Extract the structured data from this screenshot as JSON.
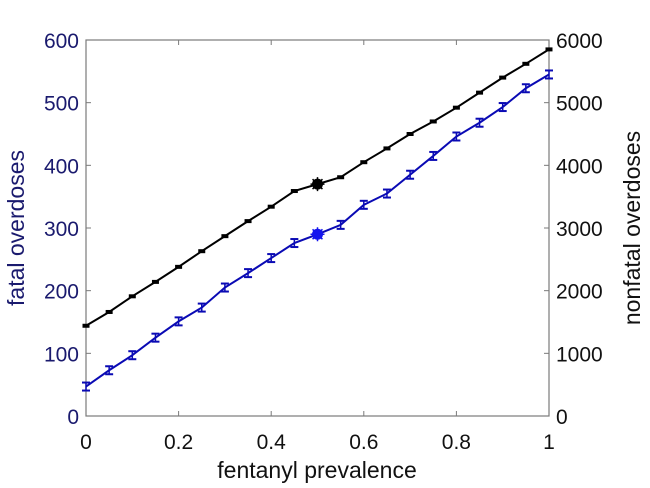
{
  "chart_data": {
    "type": "line",
    "title": "",
    "xlabel": "fentanyl prevalence",
    "ylabel": "fatal overdoses",
    "y2label": "nonfatal overdoses",
    "xlim": [
      0,
      1
    ],
    "ylim": [
      0,
      600
    ],
    "y2lim": [
      0,
      6000
    ],
    "grid": false,
    "legend": null,
    "x_ticks": [
      "0",
      "0.2",
      "0.4",
      "0.6",
      "0.8",
      "1"
    ],
    "y_ticks": [
      "0",
      "100",
      "200",
      "300",
      "400",
      "500",
      "600"
    ],
    "y2_ticks": [
      "0",
      "1000",
      "2000",
      "3000",
      "4000",
      "5000",
      "6000"
    ],
    "x": [
      0,
      0.05,
      0.1,
      0.15,
      0.2,
      0.25,
      0.3,
      0.35,
      0.4,
      0.45,
      0.5,
      0.55,
      0.6,
      0.65,
      0.7,
      0.75,
      0.8,
      0.85,
      0.9,
      0.95,
      1.0
    ],
    "series": [
      {
        "name": "fatal overdoses",
        "axis": "left",
        "color": "#0a0ab4",
        "values": [
          47,
          73,
          97,
          125,
          151,
          173,
          205,
          228,
          252,
          276,
          290,
          305,
          337,
          355,
          385,
          415,
          446,
          468,
          493,
          523,
          545
        ],
        "highlight": {
          "x": 0.5,
          "y": 290
        }
      },
      {
        "name": "nonfatal overdoses",
        "axis": "right",
        "color": "#000000",
        "values": [
          1440,
          1660,
          1910,
          2140,
          2380,
          2630,
          2870,
          3110,
          3340,
          3590,
          3700,
          3810,
          4050,
          4270,
          4500,
          4700,
          4920,
          5160,
          5400,
          5620,
          5850
        ],
        "highlight": {
          "x": 0.5,
          "y": 3700
        }
      }
    ],
    "colors": {
      "left_axis_text": "#1a1a6e",
      "right_axis_text": "#111111",
      "axis_line": "#7a7a7a"
    }
  }
}
